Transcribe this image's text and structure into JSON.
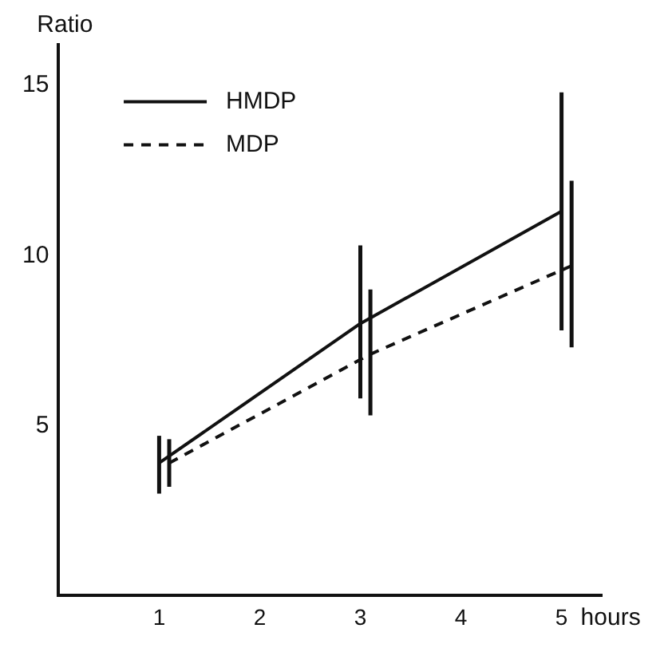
{
  "chart_data": {
    "type": "line",
    "xlabel": "hours",
    "ylabel": "Ratio",
    "x": [
      1,
      3,
      5
    ],
    "series": [
      {
        "name": "HMDP",
        "color": "#111111",
        "line_style": "solid",
        "values": [
          3.9,
          8.0,
          11.3
        ],
        "errors": [
          [
            3.0,
            4.7
          ],
          [
            5.8,
            10.3
          ],
          [
            7.8,
            14.8
          ]
        ]
      },
      {
        "name": "MDP",
        "color": "#111111",
        "line_style": "dashed",
        "x": [
          1.1,
          3.1,
          5.1
        ],
        "values": [
          3.9,
          7.1,
          9.7
        ],
        "errors": [
          [
            3.2,
            4.6
          ],
          [
            5.3,
            9.0
          ],
          [
            7.3,
            12.2
          ]
        ]
      }
    ],
    "xlim": [
      0,
      5.4
    ],
    "xticks": [
      1,
      2,
      3,
      4,
      5
    ],
    "ylim": [
      0,
      16.2
    ],
    "yticks": [
      5,
      10,
      15
    ],
    "grid": false,
    "legend": "top left",
    "marker": "none"
  }
}
